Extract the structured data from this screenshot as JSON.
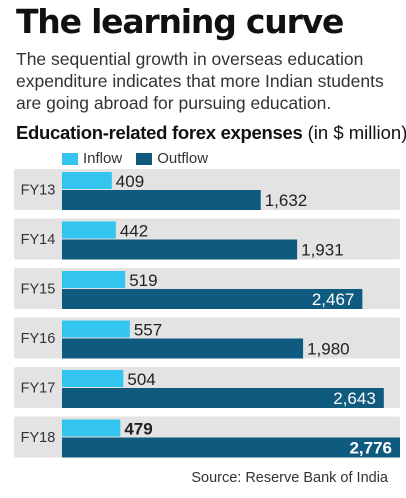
{
  "headline": "The learning curve",
  "deck": "The sequential growth in overseas education expenditure indicates that more Indian students are going abroad for pursuing education.",
  "source": "Source: Reserve Bank of India",
  "colors": {
    "inflow": "#33c4f0",
    "outflow": "#0f5a7f",
    "band": "#e3e3e3",
    "background": "#ffffff"
  },
  "chart_data": {
    "type": "bar",
    "orientation": "horizontal",
    "title": "Education-related forex expenses",
    "title_unit": "(in $ million)",
    "categories": [
      "FY13",
      "FY14",
      "FY15",
      "FY16",
      "FY17",
      "FY18"
    ],
    "series": [
      {
        "name": "Inflow",
        "values": [
          409,
          442,
          519,
          557,
          504,
          479
        ],
        "labels": [
          "409",
          "442",
          "519",
          "557",
          "504",
          "479"
        ],
        "color": "#33c4f0"
      },
      {
        "name": "Outflow",
        "values": [
          1632,
          1931,
          2467,
          1980,
          2643,
          2776
        ],
        "labels": [
          "1,632",
          "1,931",
          "2,467",
          "1,980",
          "2,643",
          "2,776"
        ],
        "color": "#0f5a7f"
      }
    ],
    "xlim": [
      0,
      2776
    ],
    "grid": false,
    "legend": "top-left",
    "emphasized_category": "FY18"
  }
}
